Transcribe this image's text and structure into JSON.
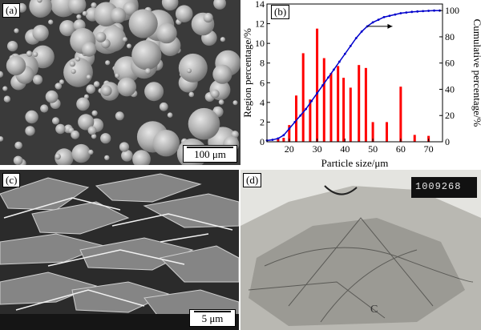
{
  "panels": {
    "a": {
      "label": "(a)",
      "scale": "100 μm"
    },
    "b": {
      "label": "(b)"
    },
    "c": {
      "label": "(c)",
      "scale": "5 μm"
    },
    "d": {
      "label": "(d)",
      "stamp": "1009268"
    }
  },
  "colors": {
    "bars": "#ff0000",
    "curve": "#0000cc",
    "axis": "#000000"
  },
  "chart_data": {
    "type": "bar",
    "title": "",
    "xlabel": "Particle size/μm",
    "ylabel": "Region percentage/%",
    "y2label": "Cumulative percentage/%",
    "xlim": [
      12,
      75
    ],
    "ylim": [
      0,
      14
    ],
    "y2lim": [
      0,
      105
    ],
    "xticks": [
      20,
      30,
      40,
      50,
      60,
      70
    ],
    "yticks": [
      0,
      2,
      4,
      6,
      8,
      10,
      12,
      14
    ],
    "y2ticks": [
      0,
      20,
      40,
      60,
      80,
      100
    ],
    "grid": false,
    "series": [
      {
        "type": "bar",
        "axis": "left",
        "x": [
          16,
          18,
          20,
          22.5,
          25,
          27.5,
          30,
          32.5,
          35,
          37.5,
          39.5,
          42,
          45,
          47.5,
          50,
          55,
          60,
          65,
          70
        ],
        "values": [
          0.3,
          0.4,
          1.7,
          4.7,
          9.0,
          4.3,
          11.5,
          8.5,
          7.0,
          7.7,
          6.5,
          5.5,
          7.8,
          7.5,
          2.0,
          2.0,
          5.6,
          0.7,
          0.6
        ]
      },
      {
        "type": "line",
        "axis": "right",
        "x": [
          12,
          14,
          16,
          18,
          20,
          22,
          24,
          26,
          28,
          30,
          32,
          34,
          36,
          38,
          40,
          42,
          44,
          46,
          48,
          50,
          52,
          54,
          56,
          58,
          60,
          62,
          64,
          66,
          68,
          70,
          72,
          74
        ],
        "values": [
          1,
          1.5,
          2.5,
          5,
          10,
          15,
          20,
          25,
          31,
          37,
          43,
          49,
          55,
          61,
          67,
          73,
          79,
          84,
          88,
          91,
          93,
          95,
          96,
          97,
          98,
          98.5,
          99,
          99.3,
          99.6,
          99.8,
          100,
          100
        ]
      }
    ],
    "annotations": [
      {
        "type": "arrow",
        "from_x": 48,
        "to_x": 57,
        "y2": 88
      }
    ]
  }
}
